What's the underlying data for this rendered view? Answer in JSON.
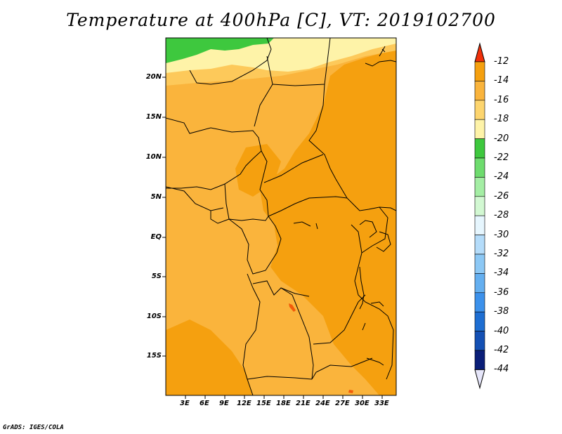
{
  "title": "Temperature at 400hPa [C], VT: 2019102700",
  "credit": "GrADS: IGES/COLA",
  "map": {
    "lat_ticks": [
      "20N",
      "15N",
      "10N",
      "5N",
      "EQ",
      "5S",
      "10S",
      "15S"
    ],
    "lon_ticks": [
      "3E",
      "6E",
      "9E",
      "12E",
      "15E",
      "18E",
      "21E",
      "24E",
      "27E",
      "30E",
      "33E"
    ],
    "fill_colors": {
      "green": "#3ec83e",
      "light_yellow": "#fef3a8",
      "yellow_orange": "#fdc95a",
      "orange": "#fab43c",
      "dark_orange": "#f5a00f",
      "red_spot": "#f25b0a"
    }
  },
  "colorbar": {
    "labels": [
      "-12",
      "-14",
      "-16",
      "-18",
      "-20",
      "-22",
      "-24",
      "-26",
      "-28",
      "-30",
      "-32",
      "-34",
      "-36",
      "-38",
      "-40",
      "-42",
      "-44"
    ],
    "colors": [
      "#f0640a",
      "#f5a00f",
      "#fab43c",
      "#fdd56e",
      "#fef3a8",
      "#3ec83e",
      "#6edc6e",
      "#a4eea4",
      "#d2f8d2",
      "#e6f6fe",
      "#b4dcfa",
      "#8cc8f5",
      "#64aff0",
      "#3c91eb",
      "#1e6ed2",
      "#1450b4",
      "#0a1e78"
    ],
    "top_arrow_color": "#f0300a",
    "bottom_arrow_color": "#e6e6fa"
  }
}
